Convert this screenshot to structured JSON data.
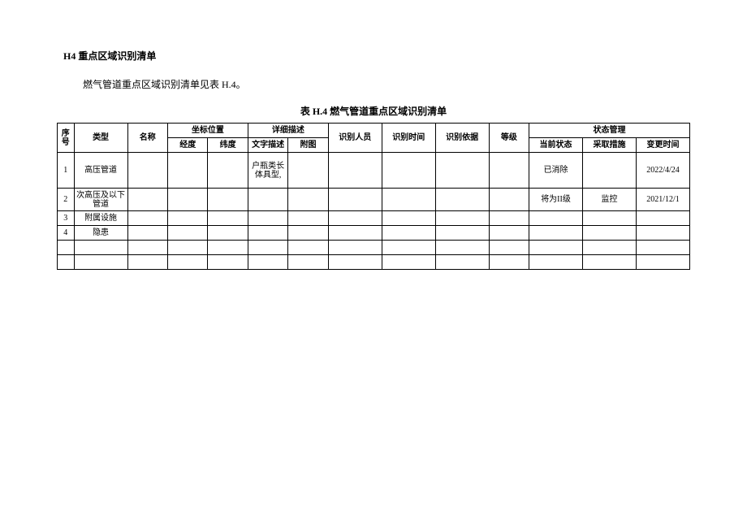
{
  "heading": "H4 重点区域识别清单",
  "subheading": "燃气管道重点区域识别清单见表 H.4。",
  "tableCaption": "表 H.4 燃气管道重点区域识别清单",
  "headers": {
    "seq": "序号",
    "type": "类型",
    "name": "名称",
    "zuobiao": "坐标位置",
    "jingdu": "经度",
    "weidu": "纬度",
    "xiangxi": "详细描述",
    "wenzi": "文字描述",
    "futu": "附图",
    "renyuan": "识别人员",
    "shijian": "识别时间",
    "yiju": "识别依据",
    "dengji": "等级",
    "zhuangtaiguanli": "状态管理",
    "dangqian": "当前状态",
    "cuoshi": "采取措施",
    "biangeng": "变更时间"
  },
  "rows": [
    {
      "seq": "1",
      "type": "高压管道",
      "name": "",
      "jing": "",
      "wei": "",
      "wenzi": "户瓶类长体具型,",
      "futu": "",
      "renyuan": "",
      "shijian": "",
      "yiju": "",
      "dengji": "",
      "zhuangtai": "已消除",
      "cuoshi": "",
      "biangeng": "2022/4/24"
    },
    {
      "seq": "2",
      "type": "次高压及以下管道",
      "name": "",
      "jing": "",
      "wei": "",
      "wenzi": "",
      "futu": "",
      "renyuan": "",
      "shijian": "",
      "yiju": "",
      "dengji": "",
      "zhuangtai": "将为II级",
      "cuoshi": "监控",
      "biangeng": "2021/12/1"
    },
    {
      "seq": "3",
      "type": "附属设施",
      "name": "",
      "jing": "",
      "wei": "",
      "wenzi": "",
      "futu": "",
      "renyuan": "",
      "shijian": "",
      "yiju": "",
      "dengji": "",
      "zhuangtai": "",
      "cuoshi": "",
      "biangeng": ""
    },
    {
      "seq": "4",
      "type": "隐患",
      "name": "",
      "jing": "",
      "wei": "",
      "wenzi": "",
      "futu": "",
      "renyuan": "",
      "shijian": "",
      "yiju": "",
      "dengji": "",
      "zhuangtai": "",
      "cuoshi": "",
      "biangeng": ""
    },
    {
      "seq": "",
      "type": "",
      "name": "",
      "jing": "",
      "wei": "",
      "wenzi": "",
      "futu": "",
      "renyuan": "",
      "shijian": "",
      "yiju": "",
      "dengji": "",
      "zhuangtai": "",
      "cuoshi": "",
      "biangeng": ""
    },
    {
      "seq": "",
      "type": "",
      "name": "",
      "jing": "",
      "wei": "",
      "wenzi": "",
      "futu": "",
      "renyuan": "",
      "shijian": "",
      "yiju": "",
      "dengji": "",
      "zhuangtai": "",
      "cuoshi": "",
      "biangeng": ""
    }
  ]
}
